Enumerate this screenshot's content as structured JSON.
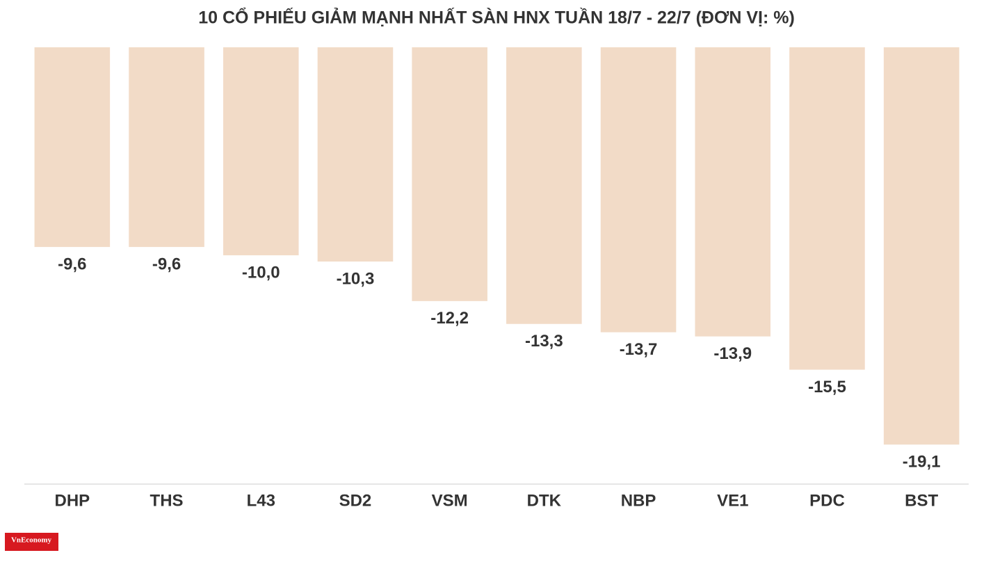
{
  "chart_data": {
    "type": "bar",
    "title": "10 CỔ PHIẾU GIẢM MẠNH NHẤT SÀN HNX TUẦN 18/7 - 22/7 (ĐƠN VỊ: %)",
    "categories": [
      "DHP",
      "THS",
      "L43",
      "SD2",
      "VSM",
      "DTK",
      "NBP",
      "VE1",
      "PDC",
      "BST"
    ],
    "values": [
      -9.6,
      -9.6,
      -10.0,
      -10.3,
      -12.2,
      -13.3,
      -13.7,
      -13.9,
      -15.5,
      -19.1
    ],
    "value_labels": [
      "-9,6",
      "-9,6",
      "-10,0",
      "-10,3",
      "-12,2",
      "-13,3",
      "-13,7",
      "-13,9",
      "-15,5",
      "-19,1"
    ],
    "color": "#f2dbc7",
    "ylim": [
      -21,
      0
    ],
    "grid": false
  },
  "logo": "VnEconomy"
}
